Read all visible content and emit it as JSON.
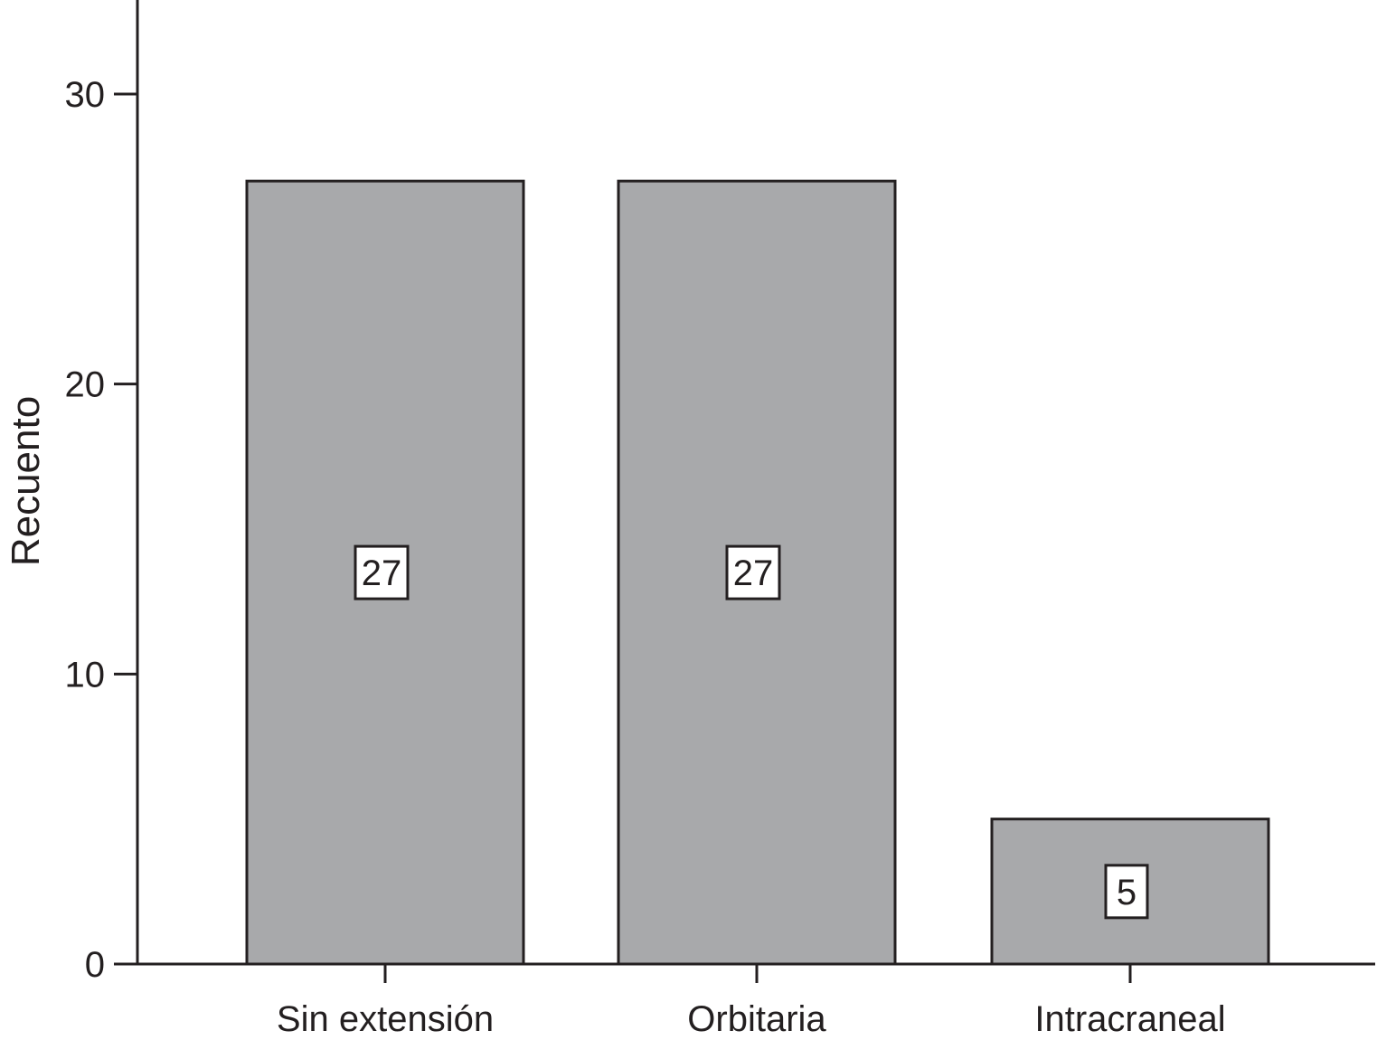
{
  "chart_data": {
    "type": "bar",
    "categories": [
      "Sin extensión",
      "Orbitaria",
      "Intracraneal"
    ],
    "values": [
      27,
      27,
      5
    ],
    "data_labels": [
      "27",
      "27",
      "5"
    ],
    "ylabel": "Recuento",
    "xlabel": "",
    "ylim": [
      0,
      33
    ],
    "yticks": [
      0,
      10,
      20,
      30
    ],
    "grid": false,
    "bar_color": "#a8a9ab",
    "edge_color": "#231f20"
  }
}
